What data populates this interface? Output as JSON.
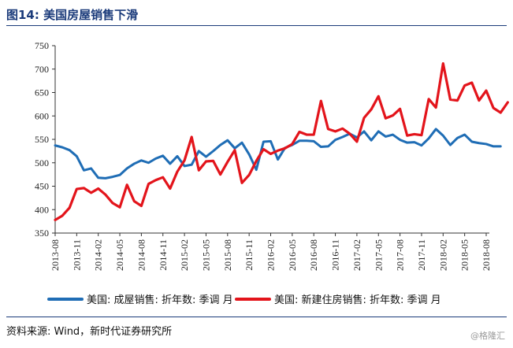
{
  "header": {
    "title": "图14:   美国房屋销售下滑"
  },
  "footer": {
    "source": "资料来源:  Wind，新时代证券研究所",
    "watermark": "@格隆汇"
  },
  "colors": {
    "series_existing": "#1f6db5",
    "series_new": "#e3141b",
    "title": "#1a3a7a"
  },
  "chart_data": {
    "type": "line",
    "title": "",
    "xlabel": "",
    "ylabel": "",
    "ylim": [
      350,
      750
    ],
    "yticks": [
      350,
      400,
      450,
      500,
      550,
      600,
      650,
      700,
      750
    ],
    "grid": false,
    "legend_position": "bottom",
    "x_start": "2013-08",
    "xtick_labels": [
      "2013-08",
      "2013-11",
      "2014-02",
      "2014-05",
      "2014-08",
      "2014-11",
      "2015-02",
      "2015-05",
      "2015-08",
      "2015-11",
      "2016-02",
      "2016-05",
      "2016-08",
      "2016-11",
      "2017-02",
      "2017-05",
      "2017-08",
      "2017-11",
      "2018-02",
      "2018-05",
      "2018-08"
    ],
    "series": [
      {
        "name": "美国: 成屋销售: 折年数: 季调  月",
        "color": "#1f6db5",
        "values": [
          537,
          533,
          527,
          514,
          484,
          488,
          468,
          467,
          470,
          474,
          488,
          498,
          505,
          500,
          509,
          515,
          498,
          514,
          493,
          496,
          525,
          513,
          525,
          538,
          548,
          531,
          543,
          518,
          485,
          545,
          546,
          507,
          532,
          538,
          547,
          547,
          546,
          534,
          535,
          549,
          555,
          562,
          554,
          567,
          548,
          567,
          556,
          560,
          549,
          543,
          544,
          537,
          552,
          572,
          558,
          538,
          553,
          560,
          545,
          542,
          540,
          535,
          535
        ]
      },
      {
        "name": "美国: 新建住房销售: 折年数: 季调  月",
        "color": "#e3141b",
        "values": [
          378,
          387,
          404,
          444,
          446,
          436,
          445,
          432,
          414,
          405,
          453,
          418,
          408,
          455,
          463,
          469,
          445,
          481,
          505,
          555,
          484,
          503,
          504,
          475,
          502,
          527,
          457,
          474,
          504,
          529,
          519,
          526,
          531,
          540,
          566,
          560,
          560,
          632,
          572,
          567,
          573,
          562,
          545,
          596,
          614,
          642,
          595,
          601,
          615,
          558,
          561,
          559,
          636,
          618,
          712,
          635,
          633,
          665,
          671,
          633,
          654,
          617,
          607,
          629
        ]
      }
    ]
  }
}
